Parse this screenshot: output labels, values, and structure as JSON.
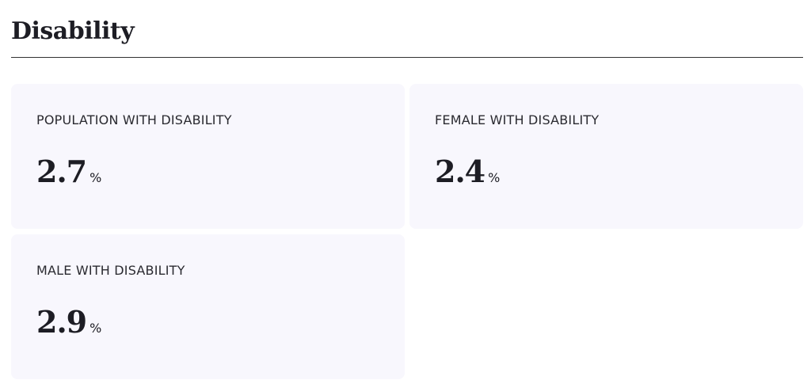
{
  "section": {
    "title": "Disability",
    "cards": [
      {
        "label": "POPULATION WITH DISABILITY",
        "value": 2.7,
        "unit": "%"
      },
      {
        "label": "FEMALE WITH DISABILITY",
        "value": 2.4,
        "unit": "%"
      },
      {
        "label": "MALE WITH DISABILITY",
        "value": 2.9,
        "unit": "%"
      }
    ]
  }
}
